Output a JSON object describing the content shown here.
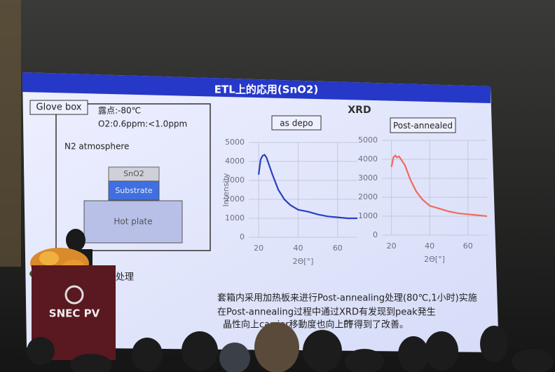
{
  "slide": {
    "title": "ETL上的応用(SnO2)",
    "xrd_title": "XRD",
    "glove_box": {
      "label": "Glove box",
      "dew_point": "露点:-80℃",
      "oxygen": "O2:0.6ppm:<1.0ppm",
      "atmosphere": "N2 atmosphere",
      "layers": [
        "SnO2",
        "Substrate",
        "Hot plate"
      ]
    },
    "bullets": [
      "处理",
      "套箱内采用加热板来进行Post-annealing处理(80℃,1小时)实施",
      "在Post-annealing过程中通过XRD有发现到peak発生",
      "晶性向上carrier移動度也向上的",
      "FF得到了改善。"
    ]
  },
  "podium": "SNEC PV",
  "chart_data": [
    {
      "type": "line",
      "title": "as depo",
      "x_label": "2Θ[°]",
      "y_label": "Intensity",
      "x": [
        20,
        21,
        22,
        23,
        24,
        25,
        27,
        30,
        33,
        36,
        40,
        45,
        50,
        55,
        60,
        65,
        70
      ],
      "series": [
        {
          "color": "#2a3fc0",
          "values": [
            3300,
            4100,
            4300,
            4350,
            4200,
            3900,
            3300,
            2500,
            2000,
            1700,
            1450,
            1350,
            1200,
            1100,
            1050,
            1000,
            1000
          ]
        }
      ],
      "xlim": [
        15,
        70
      ],
      "xticks": [
        20,
        40,
        60
      ],
      "ylim": [
        0,
        5000
      ],
      "yticks": [
        0,
        1000,
        2000,
        3000,
        4000,
        5000
      ],
      "grid": true
    },
    {
      "type": "line",
      "title": "Post-annealed",
      "x_label": "2Θ[°]",
      "x": [
        20,
        21,
        22,
        23,
        24,
        25,
        27,
        30,
        33,
        36,
        40,
        45,
        50,
        55,
        60,
        65,
        70
      ],
      "series": [
        {
          "color": "#f06a5a",
          "values": [
            3600,
            4100,
            4200,
            4100,
            4150,
            4000,
            3700,
            2900,
            2300,
            1900,
            1550,
            1400,
            1250,
            1150,
            1100,
            1050,
            1000
          ]
        }
      ],
      "xlim": [
        15,
        70
      ],
      "xticks": [
        20,
        40,
        60
      ],
      "ylim": [
        0,
        5000
      ],
      "yticks": [
        0,
        1000,
        2000,
        3000,
        4000,
        5000
      ],
      "grid": true
    }
  ]
}
